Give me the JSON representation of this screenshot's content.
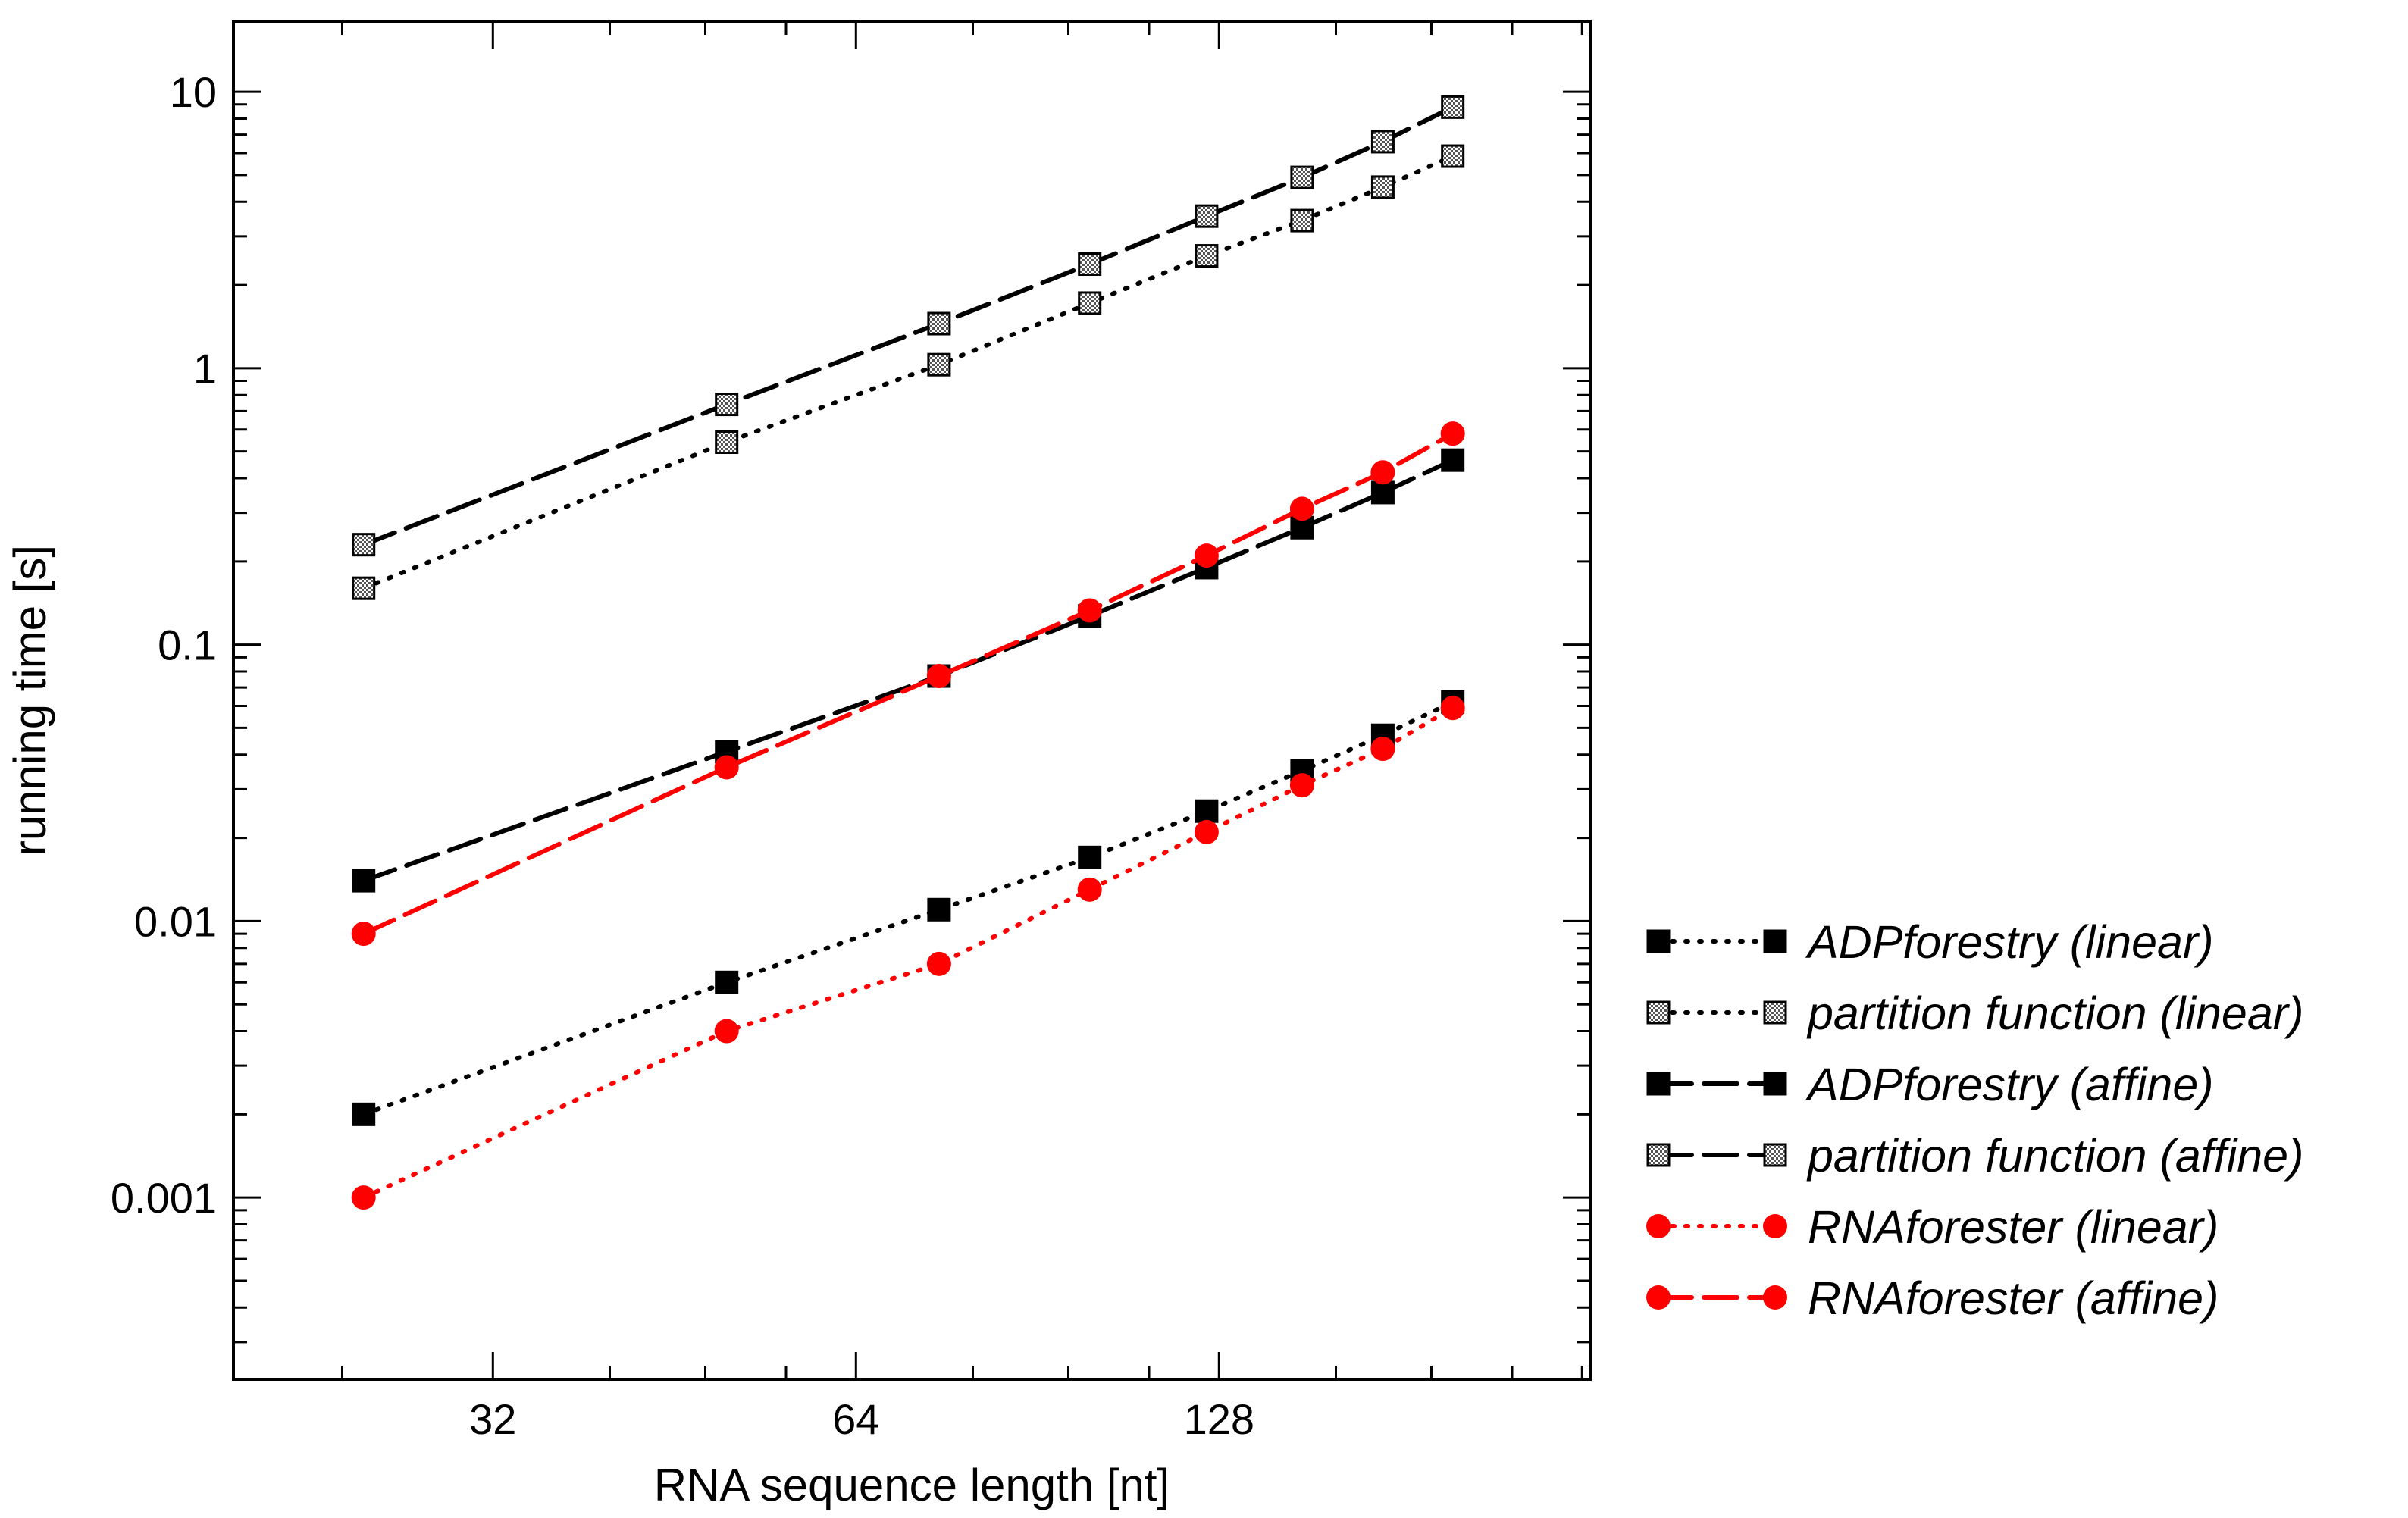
{
  "chart_data": {
    "type": "line",
    "title": "",
    "xlabel": "RNA sequence length [nt]",
    "ylabel": "running time [s]",
    "xscale": "log2",
    "yscale": "log10",
    "xlim": [
      19.5,
      260
    ],
    "ylim": [
      0.00022,
      18
    ],
    "grid": false,
    "legend_position": "right",
    "x_ticks": [
      {
        "value": 32,
        "label": "32"
      },
      {
        "value": 64,
        "label": "64"
      },
      {
        "value": 128,
        "label": "128"
      }
    ],
    "y_ticks": [
      {
        "value": 0.001,
        "label": "0.001"
      },
      {
        "value": 0.01,
        "label": "0.01"
      },
      {
        "value": 0.1,
        "label": "0.1"
      },
      {
        "value": 1,
        "label": "1"
      },
      {
        "value": 10,
        "label": "10"
      }
    ],
    "x": [
      25,
      50,
      75,
      100,
      125,
      150,
      175,
      200
    ],
    "series": [
      {
        "name": "ADPforestry (linear)",
        "color": "#000000",
        "line": "dotted",
        "marker": "square",
        "values": [
          0.002,
          0.006,
          0.011,
          0.017,
          0.025,
          0.035,
          0.047,
          0.062
        ]
      },
      {
        "name": "partition function (linear)",
        "color": "#000000",
        "line": "dotted",
        "marker": "checker-square",
        "values": [
          0.16,
          0.54,
          1.03,
          1.72,
          2.55,
          3.42,
          4.52,
          5.85
        ]
      },
      {
        "name": "ADPforestry (affine)",
        "color": "#000000",
        "line": "dashed",
        "marker": "square",
        "values": [
          0.014,
          0.041,
          0.077,
          0.127,
          0.19,
          0.265,
          0.355,
          0.465
        ]
      },
      {
        "name": "partition function (affine)",
        "color": "#000000",
        "line": "dashed",
        "marker": "checker-square",
        "values": [
          0.23,
          0.74,
          1.45,
          2.38,
          3.55,
          4.9,
          6.6,
          8.8
        ]
      },
      {
        "name": "RNAforester (linear)",
        "color": "#ff0000",
        "line": "dotted",
        "marker": "circle",
        "values": [
          0.001,
          0.004,
          0.007,
          0.013,
          0.021,
          0.031,
          0.042,
          0.059
        ]
      },
      {
        "name": "RNAforester (affine)",
        "color": "#ff0000",
        "line": "dashed",
        "marker": "circle",
        "values": [
          0.009,
          0.036,
          0.077,
          0.133,
          0.21,
          0.31,
          0.42,
          0.58
        ]
      }
    ]
  }
}
